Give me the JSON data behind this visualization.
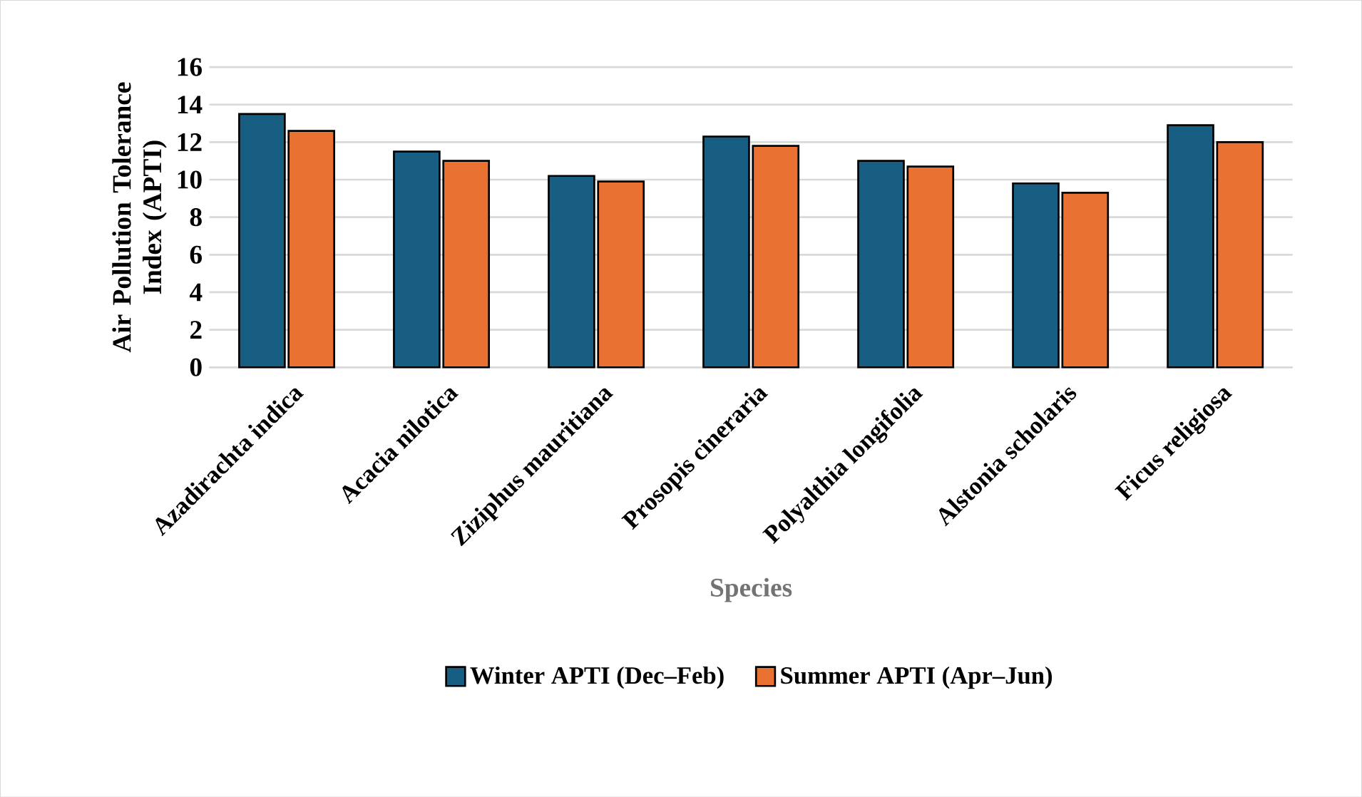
{
  "chart_data": {
    "type": "bar",
    "xlabel": "Species",
    "ylabel": "Air Pollution Tolerance Index (APTI)",
    "categories": [
      "Azadirachta indica",
      "Acacia nilotica",
      "Ziziphus mauritiana",
      "Prosopis cineraria",
      "Polyalthia longifolia",
      "Alstonia scholaris",
      "Ficus religiosa"
    ],
    "series": [
      {
        "name": "Winter APTI (Dec–Feb)",
        "color": "#175e82",
        "values": [
          13.5,
          11.5,
          10.2,
          12.3,
          11.0,
          9.8,
          12.9
        ]
      },
      {
        "name": "Summer APTI (Apr–Jun)",
        "color": "#e97132",
        "values": [
          12.6,
          11.0,
          9.9,
          11.8,
          10.7,
          9.3,
          12.0
        ]
      }
    ],
    "ylim": [
      0,
      16
    ],
    "yticks": [
      0,
      2,
      4,
      6,
      8,
      10,
      12,
      14,
      16
    ],
    "grid": "y",
    "legend": "bottom"
  }
}
